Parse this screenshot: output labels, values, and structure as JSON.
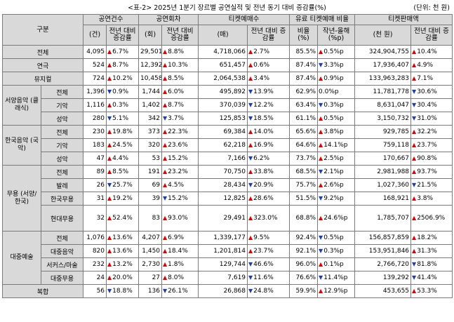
{
  "caption": {
    "title": "<표-2> 2025년 1분기 장르별 공연실적 및 전년 동기 대비 증감률(%)",
    "unit": "(단위: 천 원)"
  },
  "header": {
    "gubun": "구분",
    "groups": [
      "공연건수",
      "공연회차",
      "티켓예매수",
      "유료 티켓예매 비율",
      "티켓판매액"
    ],
    "subs": [
      "(건)",
      "전년 대비 증감률",
      "(회)",
      "전년 대비 증감률",
      "(매)",
      "전년 대비 증감률",
      "비율 (%)",
      "작년-올해 (%p)",
      "(천 원)",
      "전년 대비 증감률"
    ]
  },
  "groups": {
    "seoyang": "서양음악 (클래식)",
    "hanguk": "한국음악 (국악)",
    "muyong": "무용 (서양/한국)",
    "daejung": "대중예술"
  },
  "arrows": {
    "up": "▲",
    "down": "▼"
  },
  "rows": [
    {
      "label": "전체",
      "c1": "4,095",
      "c1d": "u",
      "c1v": "6.7%",
      "c2": "29,501",
      "c2d": "u",
      "c2v": "8.8%",
      "c3": "4,718,066",
      "c3d": "u",
      "c3v": "2.7%",
      "r1": "85.5%",
      "r2d": "u",
      "r2v": "0.5%p",
      "s": "324,904,755",
      "sd": "u",
      "sv": "10.4%"
    },
    {
      "label": "연극",
      "c1": "524",
      "c1d": "u",
      "c1v": "8.7%",
      "c2": "12,392",
      "c2d": "u",
      "c2v": "10.3%",
      "c3": "651,457",
      "c3d": "u",
      "c3v": "0.6%",
      "r1": "87.4%",
      "r2d": "d",
      "r2v": "3.3%p",
      "s": "17,936,407",
      "sd": "u",
      "sv": "4.9%"
    },
    {
      "label": "뮤지컬",
      "c1": "724",
      "c1d": "u",
      "c1v": "10.2%",
      "c2": "10,458",
      "c2d": "u",
      "c2v": "8.5%",
      "c3": "2,064,538",
      "c3d": "u",
      "c3v": "3.4%",
      "r1": "87.4%",
      "r2d": "u",
      "r2v": "0.9%p",
      "s": "133,963,283",
      "sd": "u",
      "sv": "7.1%"
    },
    {
      "label": "전체",
      "c1": "1,396",
      "c1d": "d",
      "c1v": "0.9%",
      "c2": "1,744",
      "c2d": "u",
      "c2v": "6.0%",
      "c3": "495,892",
      "c3d": "d",
      "c3v": "13.9%",
      "r1": "62.9%",
      "r2d": "",
      "r2v": "0.0%p",
      "s": "11,781,778",
      "sd": "d",
      "sv": "30.6%"
    },
    {
      "label": "기악",
      "c1": "1,116",
      "c1d": "u",
      "c1v": "0.3%",
      "c2": "1,402",
      "c2d": "u",
      "c2v": "8.7%",
      "c3": "370,039",
      "c3d": "d",
      "c3v": "12.2%",
      "r1": "63.4%",
      "r2d": "d",
      "r2v": "0.3%p",
      "s": "8,631,047",
      "sd": "d",
      "sv": "30.4%"
    },
    {
      "label": "성악",
      "c1": "280",
      "c1d": "d",
      "c1v": "5.1%",
      "c2": "342",
      "c2d": "d",
      "c2v": "3.7%",
      "c3": "125,853",
      "c3d": "d",
      "c3v": "18.5%",
      "r1": "61.1%",
      "r2d": "u",
      "r2v": "0.5%p",
      "s": "3,150,732",
      "sd": "d",
      "sv": "31.0%"
    },
    {
      "label": "전체",
      "c1": "230",
      "c1d": "u",
      "c1v": "19.8%",
      "c2": "373",
      "c2d": "u",
      "c2v": "22.3%",
      "c3": "69,384",
      "c3d": "u",
      "c3v": "14.0%",
      "r1": "65.6%",
      "r2d": "u",
      "r2v": "3.8%p",
      "s": "929,785",
      "sd": "u",
      "sv": "32.2%"
    },
    {
      "label": "기악",
      "c1": "183",
      "c1d": "u",
      "c1v": "24.5%",
      "c2": "320",
      "c2d": "u",
      "c2v": "23.6%",
      "c3": "62,218",
      "c3d": "u",
      "c3v": "16.9%",
      "r1": "64.6%",
      "r2d": "u",
      "r2v": "14.1%p",
      "s": "759,118",
      "sd": "u",
      "sv": "23.7%"
    },
    {
      "label": "성악",
      "c1": "47",
      "c1d": "u",
      "c1v": "4.4%",
      "c2": "53",
      "c2d": "u",
      "c2v": "15.2%",
      "c3": "7,166",
      "c3d": "d",
      "c3v": "6.2%",
      "r1": "73.7%",
      "r2d": "u",
      "r2v": "2.5%p",
      "s": "170,667",
      "sd": "u",
      "sv": "90.8%"
    },
    {
      "label": "전체",
      "c1": "89",
      "c1d": "u",
      "c1v": "8.5%",
      "c2": "191",
      "c2d": "u",
      "c2v": "23.2%",
      "c3": "70,750",
      "c3d": "u",
      "c3v": "33.8%",
      "r1": "68.5%",
      "r2d": "d",
      "r2v": "2.1%p",
      "s": "2,981,988",
      "sd": "u",
      "sv": "93.7%"
    },
    {
      "label": "발레",
      "c1": "26",
      "c1d": "d",
      "c1v": "25.7%",
      "c2": "69",
      "c2d": "u",
      "c2v": "4.5%",
      "c3": "28,434",
      "c3d": "d",
      "c3v": "20.9%",
      "r1": "75.7%",
      "r2d": "u",
      "r2v": "2.6%p",
      "s": "1,027,360",
      "sd": "d",
      "sv": "21.5%"
    },
    {
      "label": "한국무용",
      "c1": "31",
      "c1d": "u",
      "c1v": "19.2%",
      "c2": "39",
      "c2d": "d",
      "c2v": "15.2%",
      "c3": "12,825",
      "c3d": "u",
      "c3v": "28.6%",
      "r1": "51.5%",
      "r2d": "d",
      "r2v": "9.2%p",
      "s": "168,921",
      "sd": "u",
      "sv": "3.8%"
    },
    {
      "label": "현대무용",
      "c1": "32",
      "c1d": "u",
      "c1v": "52.4%",
      "c2": "83",
      "c2d": "u",
      "c2v": "93.0%",
      "c3": "29,491",
      "c3d": "u",
      "c3v": "323.0%",
      "r1": "68.8%",
      "r2d": "u",
      "r2v": "24.6%p",
      "s": "1,785,707",
      "sd": "u",
      "sv": "2506.9%"
    },
    {
      "label": "전체",
      "c1": "1,076",
      "c1d": "u",
      "c1v": "13.6%",
      "c2": "4,207",
      "c2d": "u",
      "c2v": "6.9%",
      "c3": "1,339,177",
      "c3d": "u",
      "c3v": "9.5%",
      "r1": "92.4%",
      "r2d": "d",
      "r2v": "0.5%p",
      "s": "156,857,859",
      "sd": "u",
      "sv": "18.2%"
    },
    {
      "label": "대중음악",
      "c1": "820",
      "c1d": "u",
      "c1v": "13.6%",
      "c2": "1,450",
      "c2d": "u",
      "c2v": "18.4%",
      "c3": "1,201,814",
      "c3d": "u",
      "c3v": "23.7%",
      "r1": "92.1%",
      "r2d": "d",
      "r2v": "0.3%p",
      "s": "153,951,846",
      "sd": "u",
      "sv": "31.3%"
    },
    {
      "label": "서커스/마술",
      "c1": "232",
      "c1d": "u",
      "c1v": "13.2%",
      "c2": "2,730",
      "c2d": "u",
      "c2v": "1.8%",
      "c3": "129,744",
      "c3d": "d",
      "c3v": "46.6%",
      "r1": "96.0%",
      "r2d": "u",
      "r2v": "0.1%p",
      "s": "2,766,720",
      "sd": "d",
      "sv": "81.8%"
    },
    {
      "label": "대중무용",
      "c1": "24",
      "c1d": "u",
      "c1v": "20.0%",
      "c2": "27",
      "c2d": "u",
      "c2v": "8.0%",
      "c3": "7,619",
      "c3d": "d",
      "c3v": "11.6%",
      "r1": "76.6%",
      "r2d": "d",
      "r2v": "11.4%p",
      "s": "139,292",
      "sd": "d",
      "sv": "41.4%"
    },
    {
      "label": "복합",
      "c1": "56",
      "c1d": "d",
      "c1v": "18.8%",
      "c2": "136",
      "c2d": "d",
      "c2v": "26.1%",
      "c3": "26,868",
      "c3d": "d",
      "c3v": "24.8%",
      "r1": "59.9%",
      "r2d": "u",
      "r2v": "12.9%p",
      "s": "453,655",
      "sd": "u",
      "sv": "53.3%"
    }
  ]
}
